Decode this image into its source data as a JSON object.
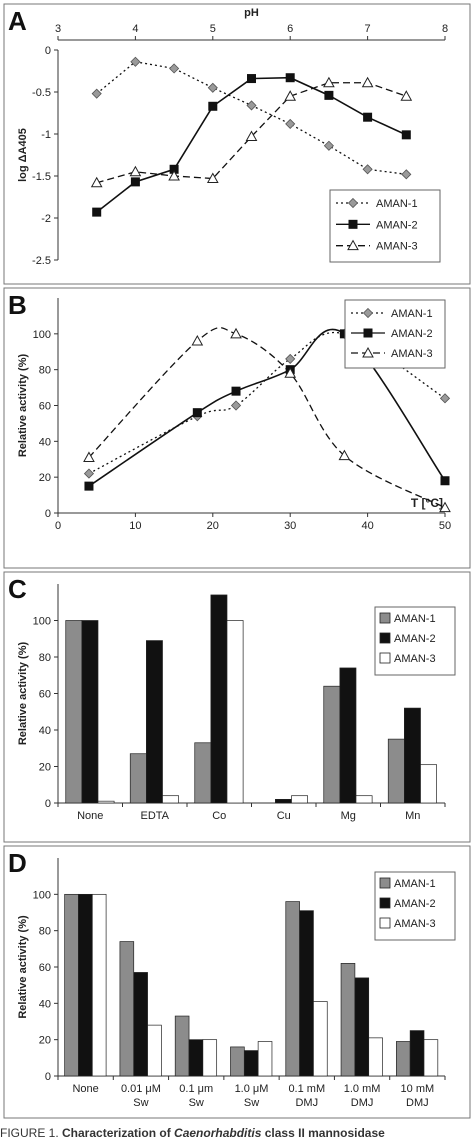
{
  "chart_data": [
    {
      "panel": "A",
      "type": "line",
      "title": "",
      "xlabel": "pH",
      "ylabel": "log ΔA405",
      "x_axis_position": "top",
      "xlim": [
        3,
        8
      ],
      "ylim": [
        -2.5,
        0
      ],
      "xticks": [
        "3",
        "4",
        "5",
        "6",
        "7",
        "8"
      ],
      "yticks": [
        "0",
        "-0.5",
        "-1",
        "-1.5",
        "-2",
        "-2.5"
      ],
      "grid": false,
      "legend": "bottom-right",
      "series": [
        {
          "name": "AMAN-1",
          "style": "dotted",
          "marker": "diamond",
          "x": [
            3.5,
            4,
            4.5,
            5,
            5.5,
            6,
            6.5,
            7,
            7.5
          ],
          "y": [
            -0.52,
            -0.14,
            -0.22,
            -0.45,
            -0.66,
            -0.88,
            -1.14,
            -1.42,
            -1.48
          ]
        },
        {
          "name": "AMAN-2",
          "style": "solid",
          "marker": "square",
          "x": [
            3.5,
            4,
            4.5,
            5,
            5.5,
            6,
            6.5,
            7,
            7.5
          ],
          "y": [
            -1.93,
            -1.57,
            -1.42,
            -0.67,
            -0.34,
            -0.33,
            -0.54,
            -0.8,
            -1.01
          ]
        },
        {
          "name": "AMAN-3",
          "style": "dashed",
          "marker": "triangle",
          "x": [
            3.5,
            4,
            4.5,
            5,
            5.5,
            6,
            6.5,
            7,
            7.5
          ],
          "y": [
            -1.58,
            -1.45,
            -1.5,
            -1.53,
            -1.03,
            -0.55,
            -0.39,
            -0.39,
            -0.55
          ]
        }
      ]
    },
    {
      "panel": "B",
      "type": "line",
      "title": "",
      "xlabel": "T [°C]",
      "ylabel": "Relative activity (%)",
      "xlim": [
        0,
        50
      ],
      "ylim": [
        0,
        120
      ],
      "xticks": [
        "0",
        "10",
        "20",
        "30",
        "40",
        "50"
      ],
      "yticks": [
        "0",
        "20",
        "40",
        "60",
        "80",
        "100"
      ],
      "grid": false,
      "legend": "top-right",
      "series": [
        {
          "name": "AMAN-1",
          "style": "dotted",
          "marker": "diamond",
          "x": [
            4,
            18,
            23,
            30,
            37,
            50
          ],
          "y": [
            22,
            54,
            60,
            86,
            100,
            64
          ]
        },
        {
          "name": "AMAN-2",
          "style": "solid",
          "marker": "square",
          "x": [
            4,
            18,
            23,
            30,
            37,
            50
          ],
          "y": [
            15,
            56,
            68,
            80,
            100,
            18
          ]
        },
        {
          "name": "AMAN-3",
          "style": "dashed",
          "marker": "triangle",
          "x": [
            4,
            18,
            23,
            30,
            37,
            50
          ],
          "y": [
            31,
            96,
            100,
            78,
            32,
            3
          ]
        }
      ]
    },
    {
      "panel": "C",
      "type": "bar",
      "title": "",
      "xlabel": "",
      "ylabel": "Relative activity (%)",
      "ylim": [
        0,
        120
      ],
      "yticks": [
        "0",
        "20",
        "40",
        "60",
        "80",
        "100"
      ],
      "grid": false,
      "legend": "top-right",
      "categories": [
        "None",
        "EDTA",
        "Co",
        "Cu",
        "Mg",
        "Mn"
      ],
      "series": [
        {
          "name": "AMAN-1",
          "color": "#8c8c8c",
          "values": [
            100,
            27,
            33,
            0,
            64,
            35
          ]
        },
        {
          "name": "AMAN-2",
          "color": "#111111",
          "values": [
            100,
            89,
            114,
            2,
            74,
            52
          ]
        },
        {
          "name": "AMAN-3",
          "color": "#ffffff",
          "values": [
            1,
            4,
            100,
            4,
            4,
            21
          ]
        }
      ]
    },
    {
      "panel": "D",
      "type": "bar",
      "title": "",
      "xlabel": "",
      "ylabel": "Relative activity (%)",
      "ylim": [
        0,
        120
      ],
      "yticks": [
        "0",
        "20",
        "40",
        "60",
        "80",
        "100"
      ],
      "grid": false,
      "legend": "top-right",
      "categories": [
        [
          "None"
        ],
        [
          "0.01 μM",
          "Sw"
        ],
        [
          "0.1 μm",
          "Sw"
        ],
        [
          "1.0 μM",
          "Sw"
        ],
        [
          "0.1 mM",
          "DMJ"
        ],
        [
          "1.0 mM",
          "DMJ"
        ],
        [
          "10 mM",
          "DMJ"
        ]
      ],
      "series": [
        {
          "name": "AMAN-1",
          "color": "#8c8c8c",
          "values": [
            100,
            74,
            33,
            16,
            96,
            62,
            19
          ]
        },
        {
          "name": "AMAN-2",
          "color": "#111111",
          "values": [
            100,
            57,
            20,
            14,
            91,
            54,
            25
          ]
        },
        {
          "name": "AMAN-3",
          "color": "#ffffff",
          "values": [
            100,
            28,
            20,
            19,
            41,
            21,
            20
          ]
        }
      ]
    }
  ],
  "caption": {
    "prefix": "FIGURE 1. ",
    "bold_a": "Characterization of ",
    "italic": "Caenorhabditis",
    "bold_b": " class II mannosidase"
  }
}
